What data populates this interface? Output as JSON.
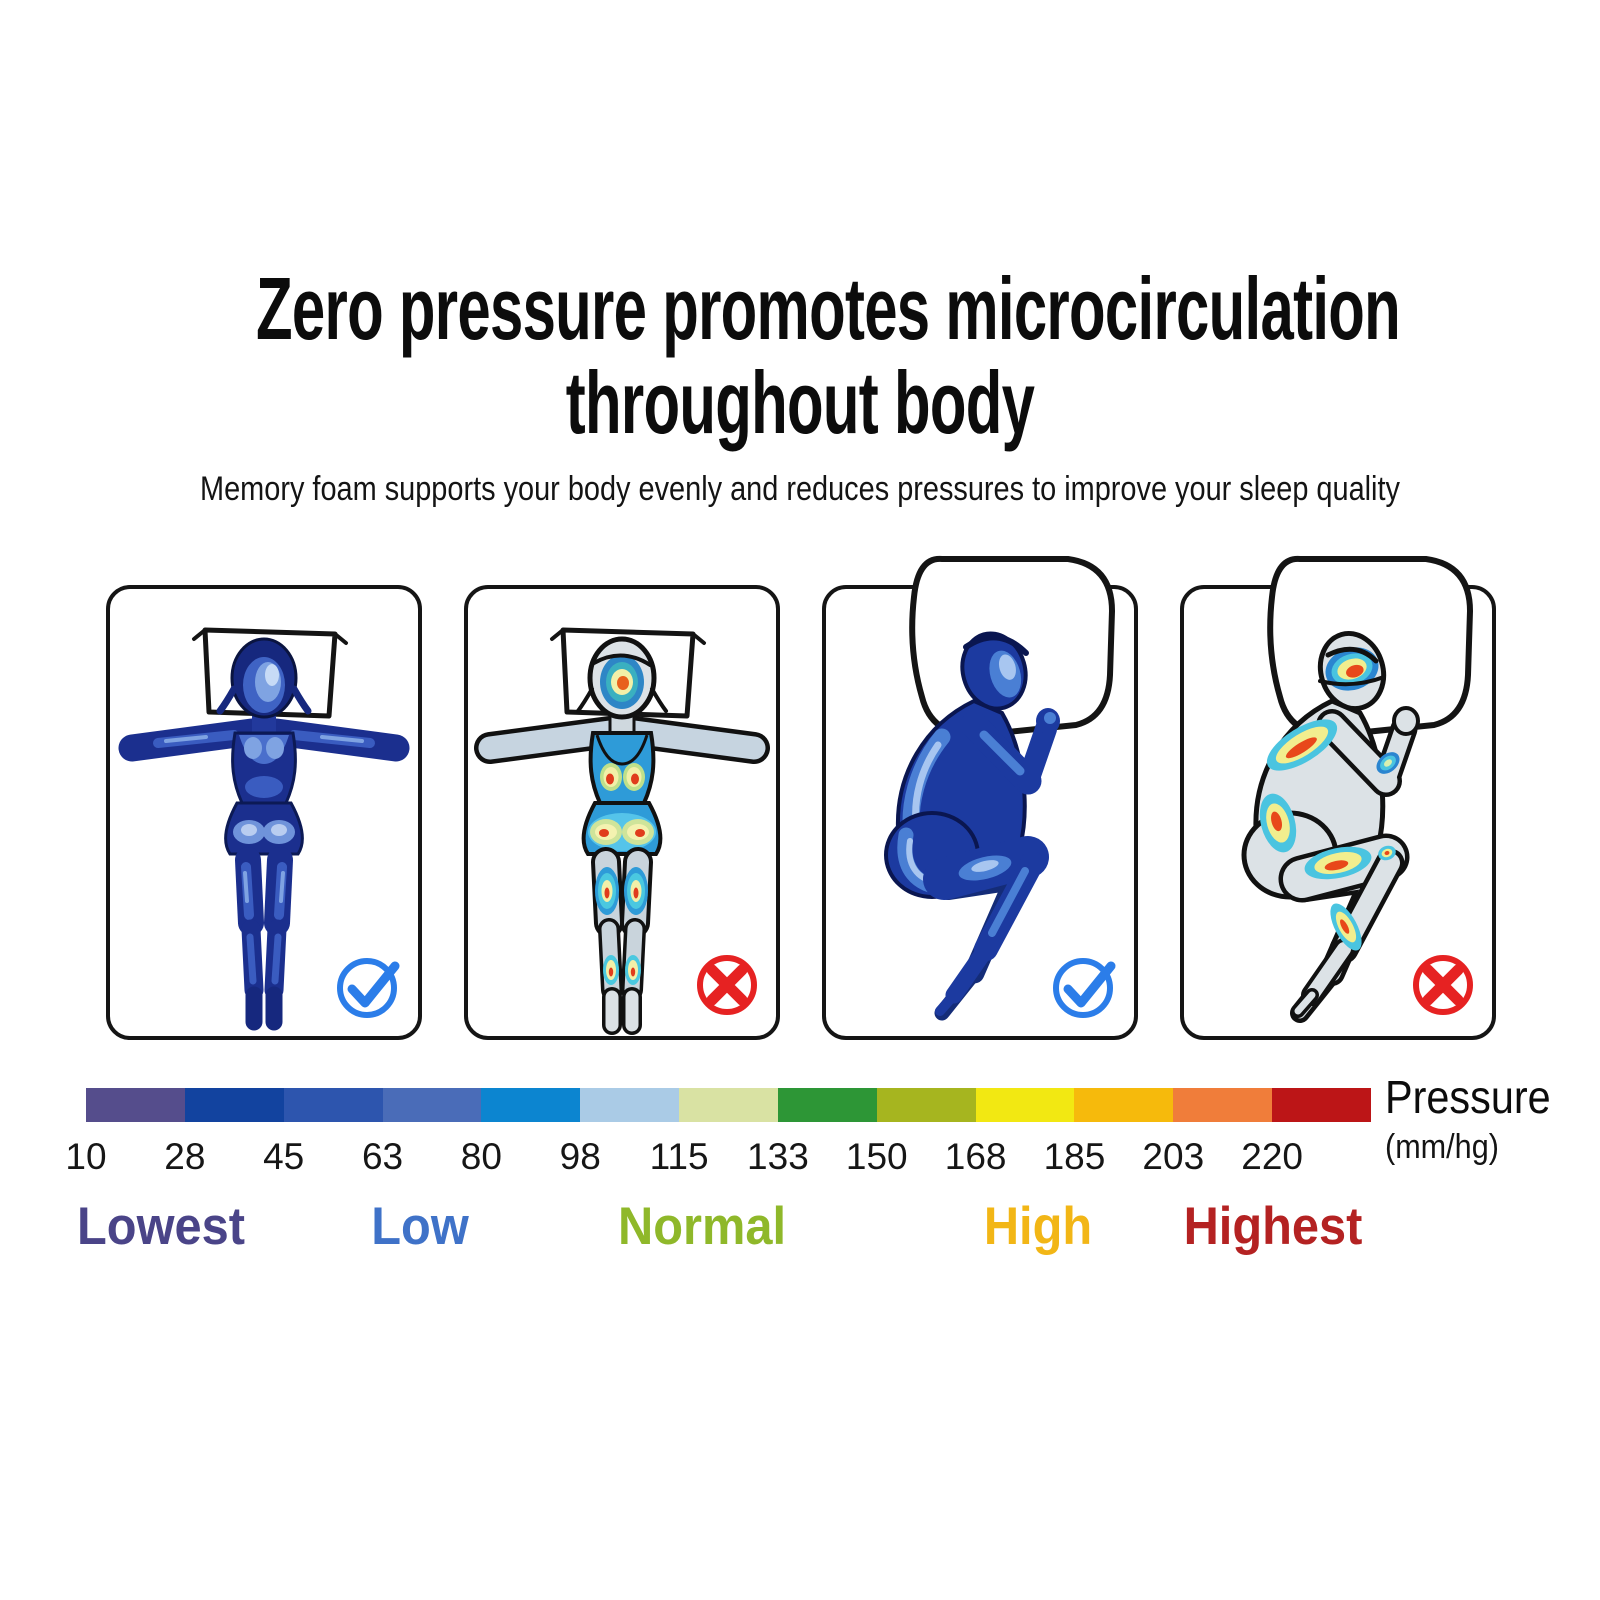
{
  "header": {
    "title_line1": "Zero pressure promotes microcirculation",
    "title_line2": "throughout body",
    "subtitle": "Memory foam supports your body evenly and reduces pressures to improve your sleep quality"
  },
  "panels": [
    {
      "pose": "lying-on-back-even-pressure",
      "verdict": "check"
    },
    {
      "pose": "lying-on-back-pressure-points",
      "verdict": "cross"
    },
    {
      "pose": "side-sleeping-even-pressure",
      "verdict": "check"
    },
    {
      "pose": "side-sleeping-pressure-points",
      "verdict": "cross"
    }
  ],
  "scale": {
    "title": "Pressure",
    "unit": "(mm/hg)",
    "values": [
      10,
      28,
      45,
      63,
      80,
      98,
      115,
      133,
      150,
      168,
      185,
      203,
      220
    ],
    "colors": [
      "#554d8c",
      "#12439f",
      "#2d55ae",
      "#4a6cb8",
      "#0c85d0",
      "#aacbe6",
      "#d9e2a3",
      "#2d9636",
      "#a6b51f",
      "#f2e812",
      "#f6ba0c",
      "#f07d3a",
      "#bc1517"
    ],
    "levels": [
      {
        "text": "Lowest",
        "color": "#4a4488",
        "x_percent": 5.8
      },
      {
        "text": "Low",
        "color": "#3f72c8",
        "x_percent": 26.0
      },
      {
        "text": "Normal",
        "color": "#8fb82a",
        "x_percent": 47.9
      },
      {
        "text": "High",
        "color": "#f2b616",
        "x_percent": 74.1
      },
      {
        "text": "Highest",
        "color": "#b42222",
        "x_percent": 92.4
      }
    ]
  },
  "icons": {
    "check": "check-icon",
    "cross": "cross-icon",
    "check_color": "#2b7de9",
    "cross_color": "#e62222"
  }
}
